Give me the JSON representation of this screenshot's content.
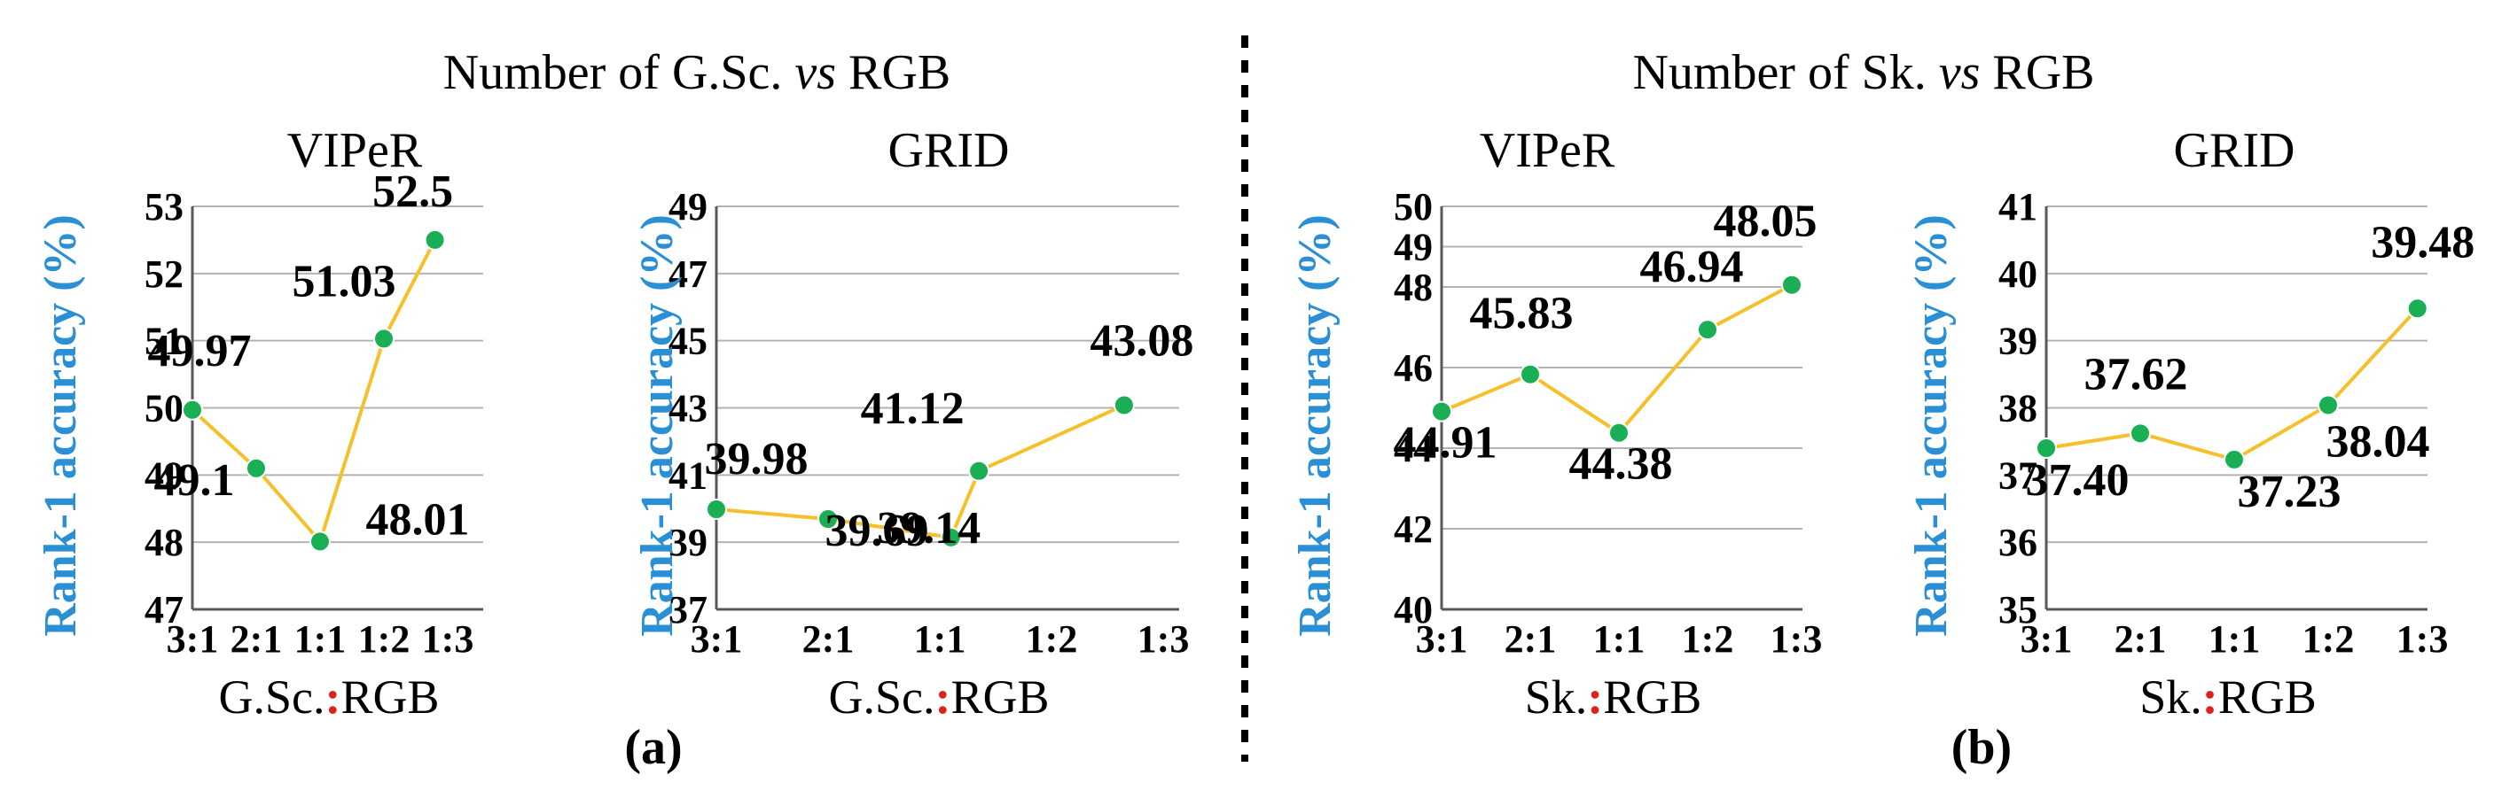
{
  "colors": {
    "line": "#f5c02a",
    "marker": "#1aaf54",
    "ytitle": "#2b8fd6",
    "separator": "#e0201c",
    "grid": "#b3b3b3"
  },
  "groups": [
    {
      "title_pre": "Number of G.Sc. ",
      "title_ital": "vs",
      "title_post": " RGB",
      "panel": "(a)"
    },
    {
      "title_pre": "Number of Sk. ",
      "title_ital": "vs",
      "title_post": " RGB",
      "panel": "(b)"
    }
  ],
  "chart_data": [
    {
      "type": "line",
      "title": "VIPeR",
      "ylabel": "Rank-1 accuracy (%)",
      "xlabel_pre": "G.Sc.",
      "xlabel_sep": ":",
      "xlabel_post": "RGB",
      "categories": [
        "3:1",
        "2:1",
        "1:1",
        "1:2",
        "1:3"
      ],
      "yticks": [
        47,
        48,
        49,
        50,
        51,
        52,
        53
      ],
      "ylim": [
        47,
        53
      ],
      "x": [
        0,
        1,
        2,
        3,
        3.8
      ],
      "values": [
        49.97,
        49.1,
        48.01,
        51.03,
        52.5
      ],
      "labels": [
        "49.97",
        "49.1",
        "48.01",
        "51.03",
        "52.5"
      ],
      "grid": true
    },
    {
      "type": "line",
      "title": "GRID",
      "ylabel": "Rank-1 accuracy (%)",
      "xlabel_pre": "G.Sc.",
      "xlabel_sep": ":",
      "xlabel_post": "RGB",
      "categories": [
        "3:1",
        "2:1",
        "1:1",
        "1:2",
        "1:3"
      ],
      "yticks": [
        37,
        39,
        41,
        43,
        45,
        47,
        49
      ],
      "ylim": [
        37,
        49
      ],
      "x": [
        0,
        1,
        2.1,
        2.35,
        3.65
      ],
      "values": [
        39.98,
        39.69,
        39.14,
        41.12,
        43.08
      ],
      "labels": [
        "39.98",
        "39.69",
        "39.14",
        "41.12",
        "43.08"
      ],
      "grid": true
    },
    {
      "type": "line",
      "title": "VIPeR",
      "ylabel": "Rank-1 accuracy (%)",
      "xlabel_pre": "Sk.",
      "xlabel_sep": ":",
      "xlabel_post": "RGB",
      "categories": [
        "3:1",
        "2:1",
        "1:1",
        "1:2",
        "1:3"
      ],
      "yticks": [
        40,
        42,
        44,
        46,
        48,
        49,
        50
      ],
      "ylim": [
        40,
        50
      ],
      "x": [
        0,
        1,
        2,
        3,
        3.95
      ],
      "values": [
        44.91,
        45.83,
        44.38,
        46.94,
        48.05
      ],
      "labels": [
        "44.91",
        "45.83",
        "44.38",
        "46.94",
        "48.05"
      ],
      "grid": true
    },
    {
      "type": "line",
      "title": "GRID",
      "ylabel": "Rank-1 accuracy (%)",
      "xlabel_pre": "Sk.",
      "xlabel_sep": ":",
      "xlabel_post": "RGB",
      "categories": [
        "3:1",
        "2:1",
        "1:1",
        "1:2",
        "1:3"
      ],
      "yticks": [
        35,
        36,
        37,
        38,
        39,
        40,
        41
      ],
      "ylim": [
        35,
        41
      ],
      "x": [
        0,
        1,
        2,
        3,
        3.95
      ],
      "values": [
        37.4,
        37.62,
        37.23,
        38.04,
        39.48
      ],
      "labels": [
        "37.40",
        "37.62",
        "37.23",
        "38.04",
        "39.48"
      ],
      "grid": true
    }
  ]
}
